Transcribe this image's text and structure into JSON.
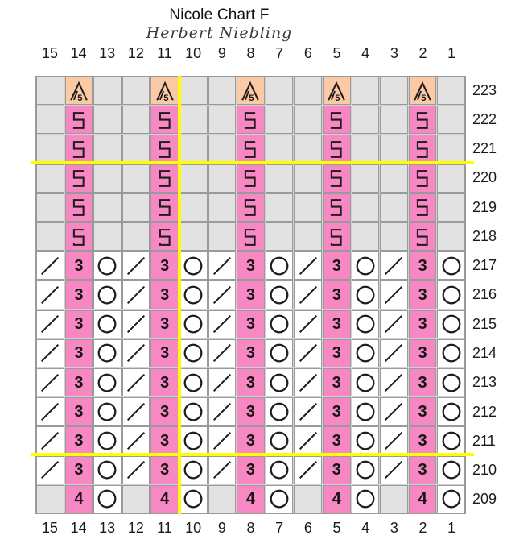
{
  "header": {
    "title": "Nicole Chart F",
    "subtitle": "Herbert Niebling"
  },
  "columns_top": [
    "15",
    "14",
    "13",
    "12",
    "11",
    "10",
    "9",
    "8",
    "7",
    "6",
    "5",
    "4",
    "3",
    "2",
    "1"
  ],
  "columns_bottom": [
    "15",
    "14",
    "13",
    "12",
    "11",
    "10",
    "9",
    "8",
    "7",
    "6",
    "5",
    "4",
    "3",
    "2",
    "1"
  ],
  "rows_right": [
    "223",
    "222",
    "221",
    "220",
    "219",
    "218",
    "217",
    "216",
    "215",
    "214",
    "213",
    "212",
    "211",
    "210",
    "209"
  ],
  "colors": {
    "pink_cell": "#f888c3",
    "peach_cell": "#fbc9a3",
    "gray_cell": "#e2e2e2",
    "white_cell": "#ffffff",
    "grid_line": "#9a9a9a",
    "repeat_line": "#ffff00",
    "symbol": "#1c1c1c"
  },
  "symbol_text": {
    "p3": "3",
    "p4": "4",
    "p5": "5",
    "dec5_digit": "5"
  },
  "symbol_names": {
    "empty": "no-stitch",
    "p5": "knit5-pink",
    "p3": "knit3-pink",
    "p4": "knit4-pink",
    "k2tog": "right-leaning-decrease",
    "yo": "yarn-over",
    "dec5": "five-into-one-decrease"
  },
  "chart_data": {
    "type": "table",
    "title": "Nicole Chart F",
    "subtitle": "Herbert Niebling",
    "columns": [
      "15",
      "14",
      "13",
      "12",
      "11",
      "10",
      "9",
      "8",
      "7",
      "6",
      "5",
      "4",
      "3",
      "2",
      "1"
    ],
    "repeat_lines": {
      "vertical_right_edge_of_column": "11",
      "horizontal_between_rows": [
        [
          "221",
          "220"
        ],
        [
          "211",
          "210"
        ]
      ]
    },
    "rows": [
      {
        "row": "223",
        "cells": [
          "empty",
          "dec5",
          "empty",
          "empty",
          "dec5",
          "empty",
          "empty",
          "dec5",
          "empty",
          "empty",
          "dec5",
          "empty",
          "empty",
          "dec5",
          "empty"
        ]
      },
      {
        "row": "222",
        "cells": [
          "empty",
          "p5",
          "empty",
          "empty",
          "p5",
          "empty",
          "empty",
          "p5",
          "empty",
          "empty",
          "p5",
          "empty",
          "empty",
          "p5",
          "empty"
        ]
      },
      {
        "row": "221",
        "cells": [
          "empty",
          "p5",
          "empty",
          "empty",
          "p5",
          "empty",
          "empty",
          "p5",
          "empty",
          "empty",
          "p5",
          "empty",
          "empty",
          "p5",
          "empty"
        ]
      },
      {
        "row": "220",
        "cells": [
          "empty",
          "p5",
          "empty",
          "empty",
          "p5",
          "empty",
          "empty",
          "p5",
          "empty",
          "empty",
          "p5",
          "empty",
          "empty",
          "p5",
          "empty"
        ]
      },
      {
        "row": "219",
        "cells": [
          "empty",
          "p5",
          "empty",
          "empty",
          "p5",
          "empty",
          "empty",
          "p5",
          "empty",
          "empty",
          "p5",
          "empty",
          "empty",
          "p5",
          "empty"
        ]
      },
      {
        "row": "218",
        "cells": [
          "empty",
          "p5",
          "empty",
          "empty",
          "p5",
          "empty",
          "empty",
          "p5",
          "empty",
          "empty",
          "p5",
          "empty",
          "empty",
          "p5",
          "empty"
        ]
      },
      {
        "row": "217",
        "cells": [
          "k2tog",
          "p3",
          "yo",
          "k2tog",
          "p3",
          "yo",
          "k2tog",
          "p3",
          "yo",
          "k2tog",
          "p3",
          "yo",
          "k2tog",
          "p3",
          "yo"
        ]
      },
      {
        "row": "216",
        "cells": [
          "k2tog",
          "p3",
          "yo",
          "k2tog",
          "p3",
          "yo",
          "k2tog",
          "p3",
          "yo",
          "k2tog",
          "p3",
          "yo",
          "k2tog",
          "p3",
          "yo"
        ]
      },
      {
        "row": "215",
        "cells": [
          "k2tog",
          "p3",
          "yo",
          "k2tog",
          "p3",
          "yo",
          "k2tog",
          "p3",
          "yo",
          "k2tog",
          "p3",
          "yo",
          "k2tog",
          "p3",
          "yo"
        ]
      },
      {
        "row": "214",
        "cells": [
          "k2tog",
          "p3",
          "yo",
          "k2tog",
          "p3",
          "yo",
          "k2tog",
          "p3",
          "yo",
          "k2tog",
          "p3",
          "yo",
          "k2tog",
          "p3",
          "yo"
        ]
      },
      {
        "row": "213",
        "cells": [
          "k2tog",
          "p3",
          "yo",
          "k2tog",
          "p3",
          "yo",
          "k2tog",
          "p3",
          "yo",
          "k2tog",
          "p3",
          "yo",
          "k2tog",
          "p3",
          "yo"
        ]
      },
      {
        "row": "212",
        "cells": [
          "k2tog",
          "p3",
          "yo",
          "k2tog",
          "p3",
          "yo",
          "k2tog",
          "p3",
          "yo",
          "k2tog",
          "p3",
          "yo",
          "k2tog",
          "p3",
          "yo"
        ]
      },
      {
        "row": "211",
        "cells": [
          "k2tog",
          "p3",
          "yo",
          "k2tog",
          "p3",
          "yo",
          "k2tog",
          "p3",
          "yo",
          "k2tog",
          "p3",
          "yo",
          "k2tog",
          "p3",
          "yo"
        ]
      },
      {
        "row": "210",
        "cells": [
          "k2tog",
          "p3",
          "yo",
          "k2tog",
          "p3",
          "yo",
          "k2tog",
          "p3",
          "yo",
          "k2tog",
          "p3",
          "yo",
          "k2tog",
          "p3",
          "yo"
        ]
      },
      {
        "row": "209",
        "cells": [
          "empty",
          "p4",
          "yo",
          "empty",
          "p4",
          "yo",
          "empty",
          "p4",
          "yo",
          "empty",
          "p4",
          "yo",
          "empty",
          "p4",
          "yo"
        ]
      }
    ]
  }
}
